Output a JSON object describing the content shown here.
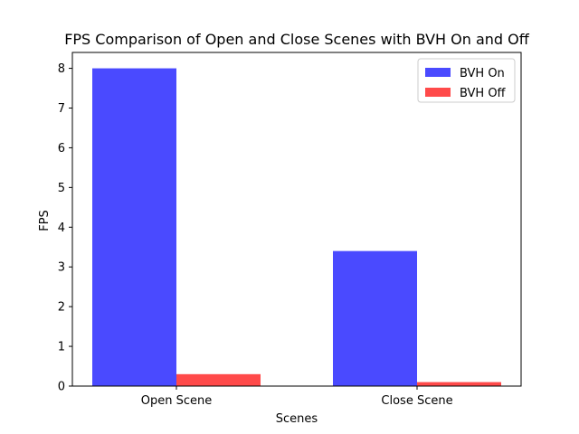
{
  "chart_data": {
    "type": "bar",
    "title": "FPS Comparison of Open and Close Scenes with BVH On and Off",
    "xlabel": "Scenes",
    "ylabel": "FPS",
    "categories": [
      "Open Scene",
      "Close Scene"
    ],
    "series": [
      {
        "name": "BVH On",
        "values": [
          8.0,
          3.4
        ],
        "color": "#4a4aff"
      },
      {
        "name": "BVH Off",
        "values": [
          0.3,
          0.1
        ],
        "color": "#ff4a4a"
      }
    ],
    "ylim": [
      0,
      8.4
    ],
    "yticks": [
      0,
      1,
      2,
      3,
      4,
      5,
      6,
      7,
      8
    ],
    "grid": false,
    "legend_position": "top-right"
  }
}
